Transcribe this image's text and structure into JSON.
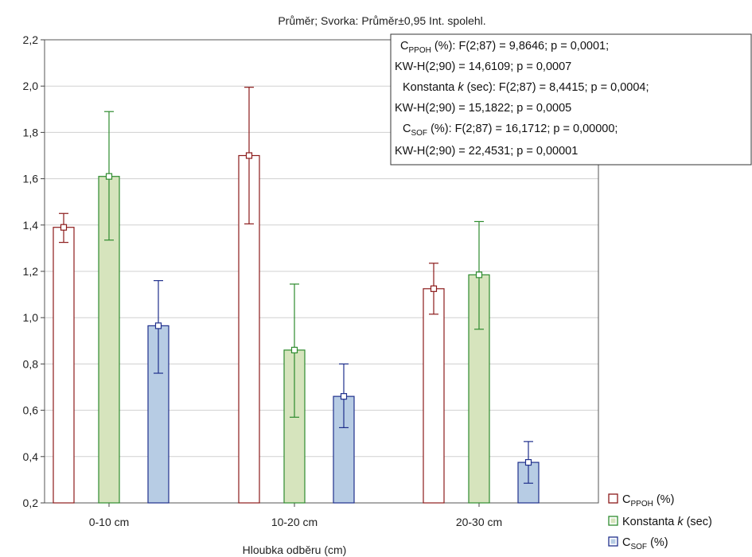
{
  "chart_data": {
    "type": "bar",
    "title": "Průměr; Svorka: Průměr±0,95 Int. spolehl.",
    "xlabel": "Hloubka odběru (cm)",
    "ylabel": "",
    "ylim": [
      0.2,
      2.2
    ],
    "yticks": [
      "0,2",
      "0,4",
      "0,6",
      "0,8",
      "1,0",
      "1,2",
      "1,4",
      "1,6",
      "1,8",
      "2,0",
      "2,2"
    ],
    "categories": [
      "0-10 cm",
      "10-20 cm",
      "20-30 cm"
    ],
    "grid": true,
    "legend_position": "bottom-right",
    "series": [
      {
        "name_main": "C",
        "name_sub": "PPOH",
        "name_suffix": " (%)",
        "color": "#8b1a1a",
        "fill": "#ffffff",
        "values": [
          1.39,
          1.7,
          1.125
        ],
        "ci_low": [
          1.325,
          1.405,
          1.015
        ],
        "ci_high": [
          1.45,
          1.995,
          1.235
        ]
      },
      {
        "name_main": "Konstanta ",
        "name_italic": "k",
        "name_suffix": " (sec)",
        "color": "#2e8b2e",
        "fill": "#d6e4bd",
        "values": [
          1.61,
          0.86,
          1.185
        ],
        "ci_low": [
          1.335,
          0.57,
          0.95
        ],
        "ci_high": [
          1.89,
          1.145,
          1.415
        ]
      },
      {
        "name_main": "C",
        "name_sub": "SOF",
        "name_suffix": " (%)",
        "color": "#1f2f8c",
        "fill": "#b7cce4",
        "values": [
          0.965,
          0.66,
          0.375
        ],
        "ci_low": [
          0.76,
          0.525,
          0.285
        ],
        "ci_high": [
          1.16,
          0.8,
          0.465
        ]
      }
    ],
    "annotation": {
      "lines": [
        {
          "main": "C",
          "sub": "PPOH",
          "rest": " (%):  F(2;87) = 9,8646; p = 0,0001;"
        },
        {
          "main": "KW-H(2;90) = 14,6109; p = 0,0007"
        },
        {
          "main": "Konstanta ",
          "italic": "k",
          "rest": " (sec):  F(2;87) = 8,4415; p = 0,0004;"
        },
        {
          "main": "KW-H(2;90) = 15,1822; p = 0,0005"
        },
        {
          "main": "C",
          "sub": "SOF",
          "rest": " (%):  F(2;87) = 16,1712; p = 0,00000;"
        },
        {
          "main": "KW-H(2;90) = 22,4531; p = 0,00001"
        }
      ]
    }
  }
}
